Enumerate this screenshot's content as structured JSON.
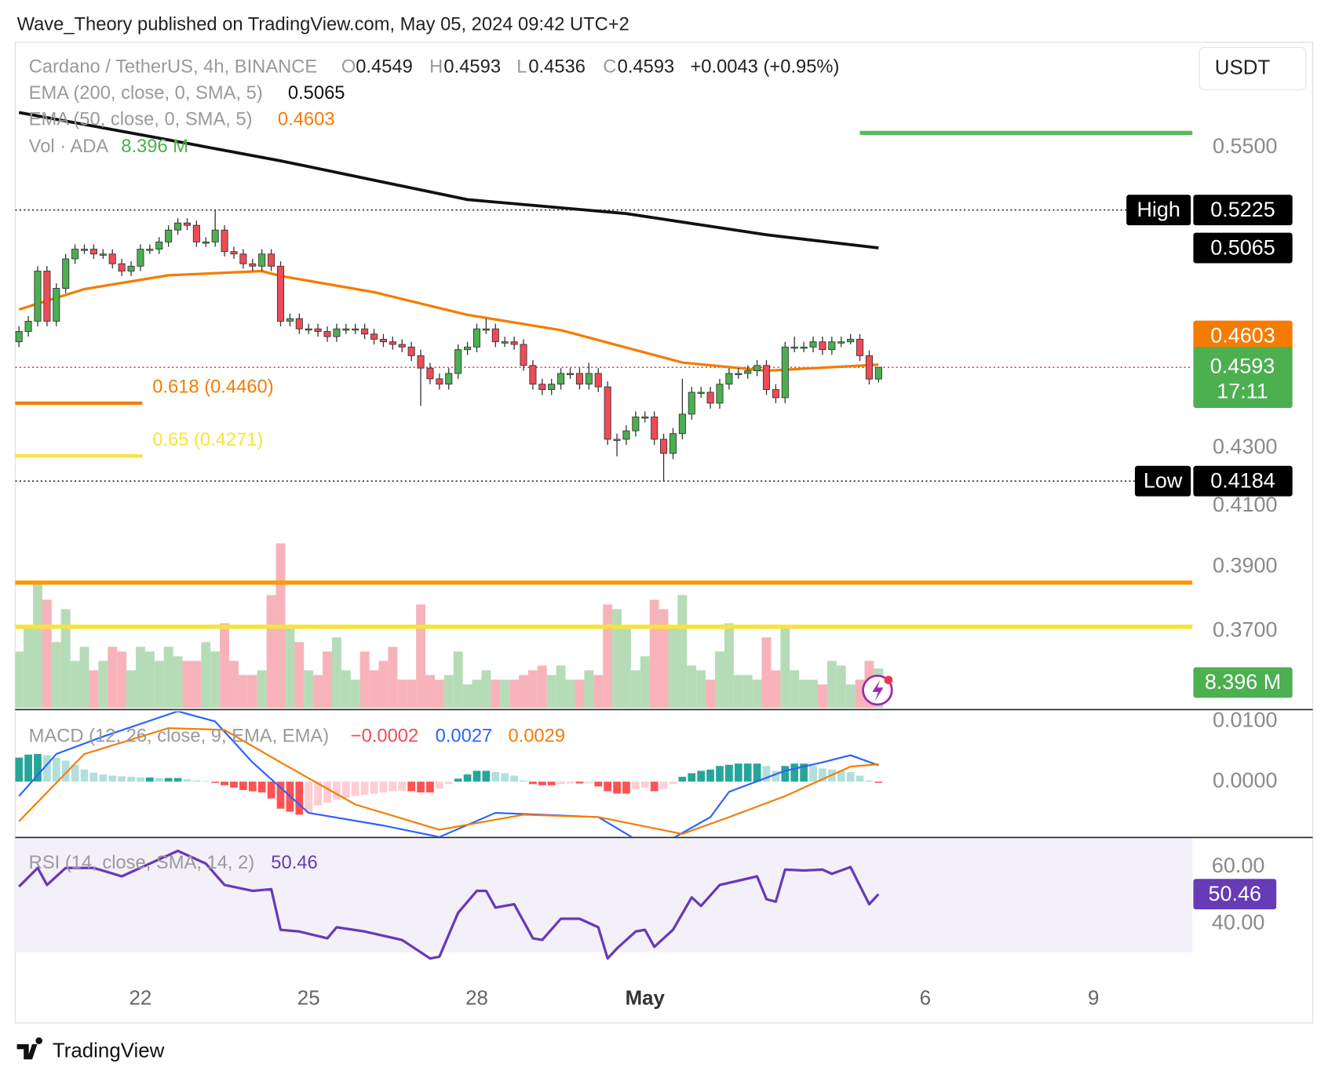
{
  "header": "Wave_Theory published on TradingView.com, May 05, 2024 09:42 UTC+2",
  "footer": "TradingView",
  "currency_button": "USDT",
  "chart_data": [
    {
      "type": "candlestick",
      "title": "Cardano / TetherUS, 4h, BINANCE",
      "ohlc_letters": [
        "O",
        "H",
        "L",
        "C"
      ],
      "change": "+0.0043 (+0.95%)",
      "up_color": "#4caf50",
      "down_color": "#ef4b57",
      "log": true,
      "ylim": [
        0.3474,
        0.5995
      ],
      "yticks": [
        {
          "value": 0.55,
          "label": "0.5500"
        },
        {
          "value": 0.43,
          "label": "0.4300"
        },
        {
          "value": 0.41,
          "label": "0.4100"
        },
        {
          "value": 0.39,
          "label": "0.3900"
        },
        {
          "value": 0.37,
          "label": "0.3700"
        }
      ],
      "xlim": [
        -0.4,
        125.6
      ],
      "xticks": [
        {
          "value": 13,
          "label": "22"
        },
        {
          "value": 31,
          "label": "25"
        },
        {
          "value": 49,
          "label": "28"
        },
        {
          "value": 67,
          "label": "May"
        },
        {
          "value": 97,
          "label": "6"
        },
        {
          "value": 115,
          "label": "9"
        }
      ],
      "open": [
        0.469,
        0.473,
        0.477,
        0.497,
        0.477,
        0.49,
        0.502,
        0.506,
        0.506,
        0.504,
        0.504,
        0.5,
        0.497,
        0.499,
        0.506,
        0.506,
        0.509,
        0.514,
        0.517,
        0.516,
        0.509,
        0.509,
        0.514,
        0.505,
        0.504,
        0.5,
        0.499,
        0.504,
        0.499,
        0.477,
        0.478,
        0.474,
        0.474,
        0.473,
        0.471,
        0.474,
        0.474,
        0.474,
        0.472,
        0.47,
        0.469,
        0.468,
        0.467,
        0.4637,
        0.459,
        0.455,
        0.453,
        0.457,
        0.466,
        0.467,
        0.474,
        0.474,
        0.469,
        0.469,
        0.468,
        0.46,
        0.453,
        0.451,
        0.453,
        0.457,
        0.457,
        0.453,
        0.457,
        0.452,
        0.433,
        0.433,
        0.436,
        0.441,
        0.441,
        0.433,
        0.428,
        0.435,
        0.442,
        0.45,
        0.45,
        0.446,
        0.453,
        0.457,
        0.457,
        0.458,
        0.46,
        0.451,
        0.448,
        0.467,
        0.467,
        0.467,
        0.469,
        0.466,
        0.469,
        0.469,
        0.47,
        0.4637,
        0.4549
      ],
      "high": [
        0.475,
        0.479,
        0.499,
        0.499,
        0.492,
        0.504,
        0.508,
        0.508,
        0.508,
        0.506,
        0.506,
        0.502,
        0.501,
        0.508,
        0.508,
        0.511,
        0.516,
        0.519,
        0.519,
        0.518,
        0.511,
        0.5225,
        0.516,
        0.507,
        0.506,
        0.502,
        0.506,
        0.506,
        0.501,
        0.48,
        0.48,
        0.476,
        0.476,
        0.475,
        0.476,
        0.476,
        0.476,
        0.476,
        0.474,
        0.472,
        0.471,
        0.47,
        0.469,
        0.466,
        0.461,
        0.457,
        0.459,
        0.468,
        0.469,
        0.476,
        0.478,
        0.476,
        0.471,
        0.471,
        0.47,
        0.462,
        0.455,
        0.455,
        0.459,
        0.459,
        0.459,
        0.461,
        0.459,
        0.454,
        0.435,
        0.438,
        0.443,
        0.443,
        0.443,
        0.435,
        0.437,
        0.455,
        0.452,
        0.452,
        0.452,
        0.455,
        0.459,
        0.459,
        0.46,
        0.462,
        0.462,
        0.453,
        0.469,
        0.471,
        0.469,
        0.471,
        0.471,
        0.471,
        0.471,
        0.472,
        0.472,
        0.4657,
        0.4593
      ],
      "low": [
        0.467,
        0.471,
        0.475,
        0.475,
        0.475,
        0.488,
        0.5,
        0.504,
        0.502,
        0.502,
        0.498,
        0.495,
        0.495,
        0.497,
        0.504,
        0.504,
        0.507,
        0.512,
        0.514,
        0.507,
        0.507,
        0.507,
        0.503,
        0.502,
        0.498,
        0.497,
        0.497,
        0.497,
        0.475,
        0.475,
        0.472,
        0.472,
        0.471,
        0.469,
        0.469,
        0.472,
        0.472,
        0.47,
        0.468,
        0.467,
        0.466,
        0.465,
        0.4617,
        0.445,
        0.453,
        0.451,
        0.451,
        0.455,
        0.464,
        0.465,
        0.472,
        0.467,
        0.467,
        0.466,
        0.458,
        0.451,
        0.449,
        0.449,
        0.451,
        0.455,
        0.451,
        0.451,
        0.45,
        0.431,
        0.427,
        0.431,
        0.434,
        0.439,
        0.431,
        0.4184,
        0.426,
        0.433,
        0.44,
        0.448,
        0.444,
        0.444,
        0.451,
        0.455,
        0.455,
        0.456,
        0.449,
        0.446,
        0.446,
        0.465,
        0.465,
        0.465,
        0.464,
        0.464,
        0.467,
        0.468,
        0.4617,
        0.4529,
        0.4536
      ],
      "close": [
        0.473,
        0.477,
        0.497,
        0.477,
        0.49,
        0.502,
        0.506,
        0.506,
        0.504,
        0.504,
        0.5,
        0.497,
        0.499,
        0.506,
        0.506,
        0.509,
        0.514,
        0.517,
        0.516,
        0.509,
        0.509,
        0.514,
        0.505,
        0.504,
        0.5,
        0.499,
        0.504,
        0.499,
        0.477,
        0.478,
        0.474,
        0.474,
        0.473,
        0.471,
        0.474,
        0.474,
        0.474,
        0.472,
        0.47,
        0.469,
        0.468,
        0.467,
        0.4637,
        0.459,
        0.455,
        0.453,
        0.457,
        0.466,
        0.467,
        0.474,
        0.474,
        0.469,
        0.469,
        0.468,
        0.46,
        0.453,
        0.451,
        0.453,
        0.457,
        0.457,
        0.453,
        0.457,
        0.452,
        0.433,
        0.433,
        0.436,
        0.441,
        0.441,
        0.433,
        0.428,
        0.435,
        0.442,
        0.45,
        0.45,
        0.446,
        0.453,
        0.457,
        0.457,
        0.458,
        0.46,
        0.451,
        0.448,
        0.467,
        0.467,
        0.467,
        0.469,
        0.466,
        0.469,
        0.469,
        0.47,
        0.4637,
        0.4549,
        0.4593
      ],
      "overlays": [
        {
          "name": "EMA (200, close, 0, SMA, 5)",
          "color": "#111111",
          "x": [
            0,
            14,
            28,
            48,
            65,
            80,
            92
          ],
          "values": [
            0.566,
            0.555,
            0.544,
            0.527,
            0.521,
            0.512,
            0.5065
          ]
        },
        {
          "name": "EMA (50, close, 0, SMA, 5)",
          "color": "#f57c00",
          "x": [
            0,
            7,
            16,
            26,
            28,
            38,
            48,
            58,
            71,
            80,
            92
          ],
          "values": [
            0.4816,
            0.4897,
            0.4953,
            0.497,
            0.495,
            0.4885,
            0.4795,
            0.4735,
            0.4611,
            0.458,
            0.4603
          ]
        }
      ],
      "levels": [
        {
          "label": "0.618 (0.4460)",
          "value": 0.446,
          "color": "#f57c00"
        },
        {
          "label": "0.65 (0.4271)",
          "value": 0.4271,
          "color": "#f7e43a"
        }
      ],
      "lines": [
        {
          "value": 0.5566,
          "color": "#5cb85c",
          "from": 90
        },
        {
          "value": 0.385,
          "color": "#ff9800",
          "from": -0.4
        },
        {
          "value": 0.3713,
          "color": "#f7e43a",
          "from": -0.4
        }
      ],
      "high_label": "High",
      "low_label": "Low",
      "high_index": 21,
      "low_index": 69,
      "countdown": "17:11"
    },
    {
      "type": "volume",
      "title": "Vol · ADA",
      "value_label": "8.396 M",
      "up_color": "#b5dcb6",
      "down_color": "#f7b3b9",
      "label_color": "#4caf50",
      "ylim": [
        0,
        36
      ],
      "values": [
        12,
        17,
        27,
        23,
        14,
        21,
        10,
        13,
        8,
        10,
        13,
        12,
        8,
        13,
        12,
        10,
        13,
        11,
        10,
        10,
        14,
        12,
        18,
        10,
        7,
        7,
        8,
        24,
        35,
        17,
        14,
        8,
        7,
        12,
        15,
        8,
        6,
        12,
        8,
        10,
        13,
        6,
        6,
        22,
        7,
        6,
        7,
        12,
        5,
        6,
        8,
        6,
        6,
        6,
        7,
        8,
        9,
        7,
        9,
        6,
        6,
        8,
        7,
        22,
        21,
        17,
        8,
        11,
        23,
        21,
        17,
        24,
        9,
        8,
        6,
        12,
        18,
        7,
        7,
        6,
        15,
        8,
        17,
        8,
        6,
        6,
        5,
        10,
        9,
        5,
        6,
        10,
        8.396
      ]
    },
    {
      "type": "macd",
      "title": "MACD (12, 26, close, 9, EMA, EMA)",
      "hist_label": "−0.0002",
      "ylim": [
        -0.00915,
        0.01169
      ],
      "yticks": [
        {
          "value": 0.01,
          "label": "0.0100"
        },
        {
          "value": 0,
          "label": "0.0000"
        }
      ],
      "hist_colors": {
        "up_strong": "#26a69a",
        "up_weak": "#b2dfdb",
        "down_strong": "#ff5252",
        "down_weak": "#ffcdd2"
      },
      "histogram": [
        0.004,
        0.0045,
        0.0046,
        0.0044,
        0.004,
        0.0035,
        0.0028,
        0.002,
        0.0015,
        0.0012,
        0.001,
        0.0009,
        0.0008,
        0.0007,
        0.0007,
        0.0006,
        0.0006,
        0.0006,
        0.0004,
        0.0002,
        0.0001,
        -0.0002,
        -0.0006,
        -0.001,
        -0.0014,
        -0.0016,
        -0.0018,
        -0.0028,
        -0.0045,
        -0.005,
        -0.0055,
        -0.0052,
        -0.004,
        -0.0035,
        -0.003,
        -0.0027,
        -0.0024,
        -0.0022,
        -0.002,
        -0.0018,
        -0.0016,
        -0.0015,
        -0.0016,
        -0.0018,
        -0.0018,
        -0.0012,
        -0.0004,
        0.0005,
        0.0012,
        0.0018,
        0.0018,
        0.0016,
        0.0014,
        0.001,
        0.0002,
        -0.0004,
        -0.0006,
        -0.0006,
        -0.0004,
        -0.0003,
        -0.0003,
        -0.0002,
        -0.0008,
        -0.0016,
        -0.002,
        -0.002,
        -0.0012,
        -0.001,
        -0.0016,
        -0.0012,
        -0.0004,
        0.0008,
        0.0014,
        0.0018,
        0.002,
        0.0026,
        0.0028,
        0.003,
        0.003,
        0.003,
        0.0026,
        0.0018,
        0.0026,
        0.003,
        0.003,
        0.0026,
        0.0022,
        0.002,
        0.0018,
        0.0016,
        0.001,
        0.0002,
        -0.0002
      ],
      "series": [
        {
          "name": "MACD",
          "color": "#2962ff",
          "x": [
            0,
            4,
            9,
            17,
            21,
            25,
            31,
            39,
            45,
            51,
            56,
            62,
            66,
            70,
            74,
            76,
            82,
            86,
            89,
            92
          ],
          "values": [
            -0.0024,
            0.0046,
            0.0075,
            0.0117,
            0.01,
            0.0032,
            -0.0052,
            -0.0073,
            -0.0092,
            -0.0052,
            -0.0055,
            -0.0059,
            -0.0096,
            -0.0094,
            -0.0059,
            -0.0017,
            0.0018,
            0.0032,
            0.0044,
            0.0027
          ]
        },
        {
          "name": "Signal",
          "color": "#f57c00",
          "x": [
            0,
            7,
            16,
            22,
            28,
            36,
            45,
            54,
            62,
            71,
            76,
            82,
            89,
            92
          ],
          "values": [
            -0.0066,
            0.0046,
            0.0089,
            0.0086,
            0.0032,
            -0.0038,
            -0.008,
            -0.0055,
            -0.0059,
            -0.0087,
            -0.0059,
            -0.0024,
            0.0025,
            0.0029
          ]
        }
      ]
    },
    {
      "type": "line",
      "title": "RSI (14, close, SMA, 14, 2)",
      "color": "#673ab7",
      "band": [
        30,
        70
      ],
      "band_color": "#f3f0fa",
      "ylim": [
        19.4,
        70.1
      ],
      "yticks": [
        {
          "value": 60,
          "label": "60.00"
        },
        {
          "value": 40,
          "label": "40.00"
        }
      ],
      "x": [
        0,
        2,
        3,
        5,
        8,
        11,
        14,
        17,
        20,
        22,
        25,
        27,
        28,
        30,
        33,
        34,
        37,
        41,
        44,
        45,
        47,
        49,
        50,
        51,
        53,
        55,
        56,
        58,
        60,
        62,
        63,
        64,
        66,
        67,
        68,
        70,
        72,
        73,
        75,
        77,
        79,
        80,
        81,
        82,
        84,
        86,
        87,
        89,
        91,
        92
      ],
      "values": [
        53.1,
        59.7,
        53.7,
        59.7,
        59.7,
        56.7,
        61.2,
        65.7,
        61.2,
        53.7,
        51.6,
        52.2,
        37.9,
        37.3,
        34.9,
        38.8,
        37.3,
        34.3,
        27.8,
        28.4,
        43.9,
        51.6,
        51.6,
        45.7,
        46.9,
        34.9,
        34.3,
        41.8,
        41.8,
        38.8,
        27.8,
        31.3,
        37.3,
        37.9,
        31.9,
        37.9,
        49.3,
        46.3,
        53.7,
        55.2,
        56.7,
        48.7,
        47.8,
        59.1,
        58.8,
        59.1,
        57.6,
        60.0,
        46.9,
        50.46
      ]
    }
  ]
}
